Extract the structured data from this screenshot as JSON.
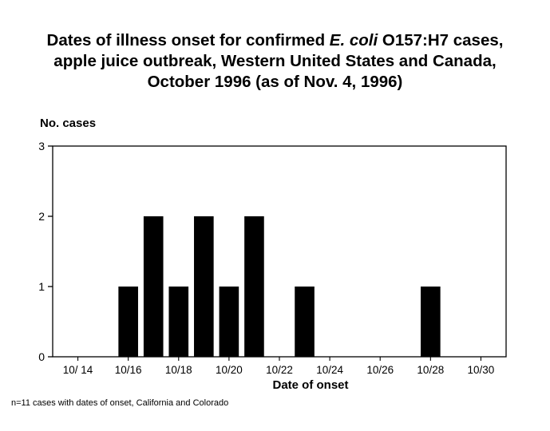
{
  "title": {
    "line1_pre": "Dates of illness onset for  confirmed ",
    "line1_italic": "E. coli",
    "line1_post": " O157:H7 cases,",
    "line2": "apple juice outbreak, Western United States and Canada,",
    "line3": "October 1996 (as of Nov. 4, 1996)"
  },
  "footnote": "n=11 cases with dates of onset, California and Colorado",
  "chart_data": {
    "type": "bar",
    "title": "Dates of illness onset for confirmed E. coli O157:H7 cases, apple juice outbreak, Western United States and Canada, October 1996 (as of Nov. 4, 1996)",
    "xlabel": "Date of onset",
    "ylabel": "No. cases",
    "ylim": [
      0,
      3
    ],
    "yticks": [
      "0",
      "1",
      "2",
      "3"
    ],
    "xtick_labels": [
      "10/ 14",
      "10/16",
      "10/18",
      "10/20",
      "10/22",
      "10/24",
      "10/26",
      "10/28",
      "10/30"
    ],
    "xtick_days": [
      14,
      16,
      18,
      20,
      22,
      24,
      26,
      28,
      30
    ],
    "x_range_days": [
      13,
      31
    ],
    "categories": [
      "10/16",
      "10/17",
      "10/18",
      "10/19",
      "10/20",
      "10/21",
      "10/23",
      "10/28"
    ],
    "bar_days": [
      16,
      17,
      18,
      19,
      20,
      21,
      23,
      28
    ],
    "values": [
      1,
      2,
      1,
      2,
      1,
      2,
      1,
      1
    ],
    "grid": false,
    "color": "#000000"
  }
}
